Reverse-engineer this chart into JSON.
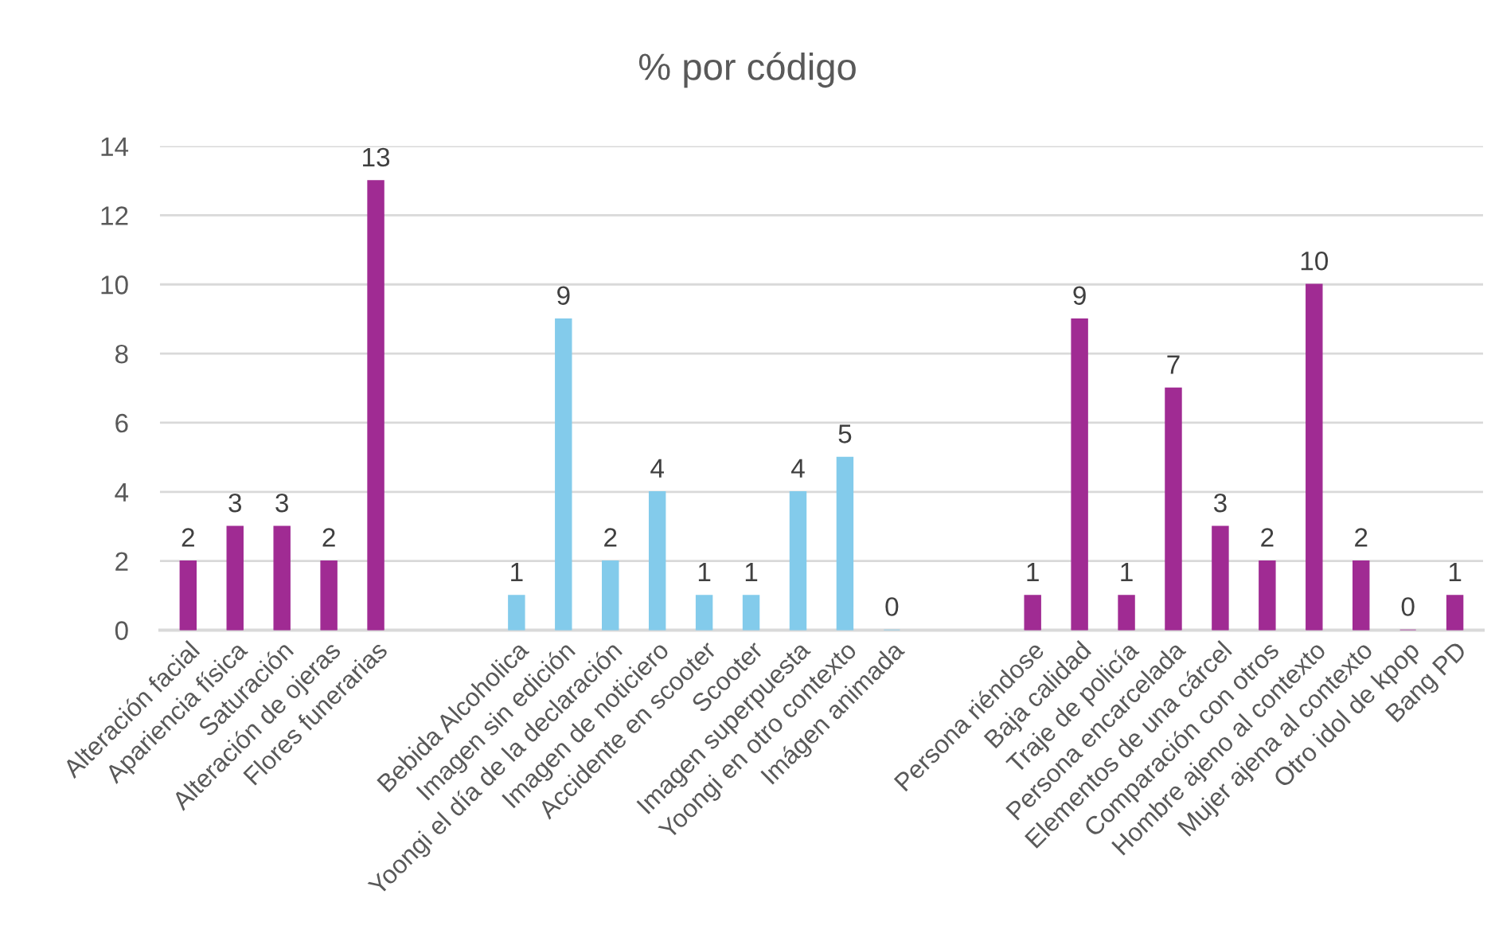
{
  "chart_data": {
    "type": "bar",
    "title": "% por código",
    "categories": [
      "Alteración facial",
      "Apariencia física",
      "Saturación",
      "Alteración de ojeras",
      "Flores funerarias",
      null,
      null,
      "Bebida Alcoholica",
      "Imagen sin edición",
      "Yoongi el día de la declaración",
      "Imagen de noticiero",
      "Accidente en scooter",
      "Scooter",
      "Imagen superpuesta",
      "Yoongi en otro contexto",
      "Imágen animada",
      null,
      null,
      "Persona riéndose",
      "Baja calidad",
      "Traje de policía",
      "Persona encarcelada",
      "Elementos de una cárcel",
      "Comparación con otros",
      "Hombre ajeno al contexto",
      "Mujer ajena al contexto",
      "Otro idol de kpop",
      "Bang PD"
    ],
    "values": [
      2,
      3,
      3,
      2,
      13,
      null,
      null,
      1,
      9,
      2,
      4,
      1,
      1,
      4,
      5,
      0,
      null,
      null,
      1,
      9,
      1,
      7,
      3,
      2,
      10,
      2,
      0,
      1
    ],
    "colors": [
      "#a02b93",
      "#a02b93",
      "#a02b93",
      "#a02b93",
      "#a02b93",
      null,
      null,
      "#83cbeb",
      "#83cbeb",
      "#83cbeb",
      "#83cbeb",
      "#83cbeb",
      "#83cbeb",
      "#83cbeb",
      "#83cbeb",
      "#83cbeb",
      null,
      null,
      "#a02b93",
      "#a02b93",
      "#a02b93",
      "#a02b93",
      "#a02b93",
      "#a02b93",
      "#a02b93",
      "#a02b93",
      "#a02b93",
      "#a02b93"
    ],
    "ylim": [
      0,
      14
    ],
    "yticks": [
      0,
      2,
      4,
      6,
      8,
      10,
      12,
      14
    ],
    "grid": "y",
    "data_labels": true,
    "legend": false
  }
}
